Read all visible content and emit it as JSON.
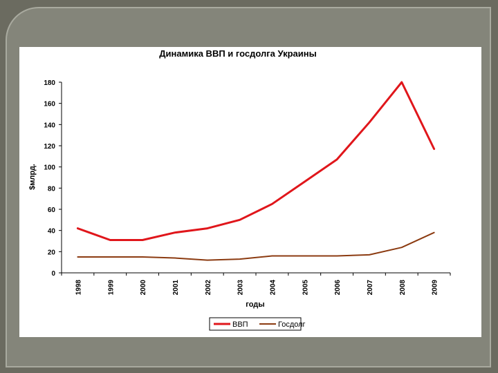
{
  "chart_data": {
    "type": "line",
    "title": "Динамика ВВП и госдолга Украины",
    "xlabel": "годы",
    "ylabel": "$млрд.",
    "ylim": [
      0,
      180
    ],
    "ytick_step": 20,
    "grid": false,
    "legend_position": "bottom",
    "categories": [
      "1998",
      "1999",
      "2000",
      "2001",
      "2002",
      "2003",
      "2004",
      "2005",
      "2006",
      "2007",
      "2008",
      "2009"
    ],
    "series": [
      {
        "name": "ВВП",
        "color": "#e0161b",
        "values": [
          42,
          31,
          31,
          38,
          42,
          50,
          65,
          86,
          107,
          142,
          180,
          117
        ]
      },
      {
        "name": "Госдолг",
        "color": "#8b3a10",
        "values": [
          15,
          15,
          15,
          14,
          12,
          13,
          16,
          16,
          16,
          17,
          24,
          38
        ]
      }
    ]
  }
}
